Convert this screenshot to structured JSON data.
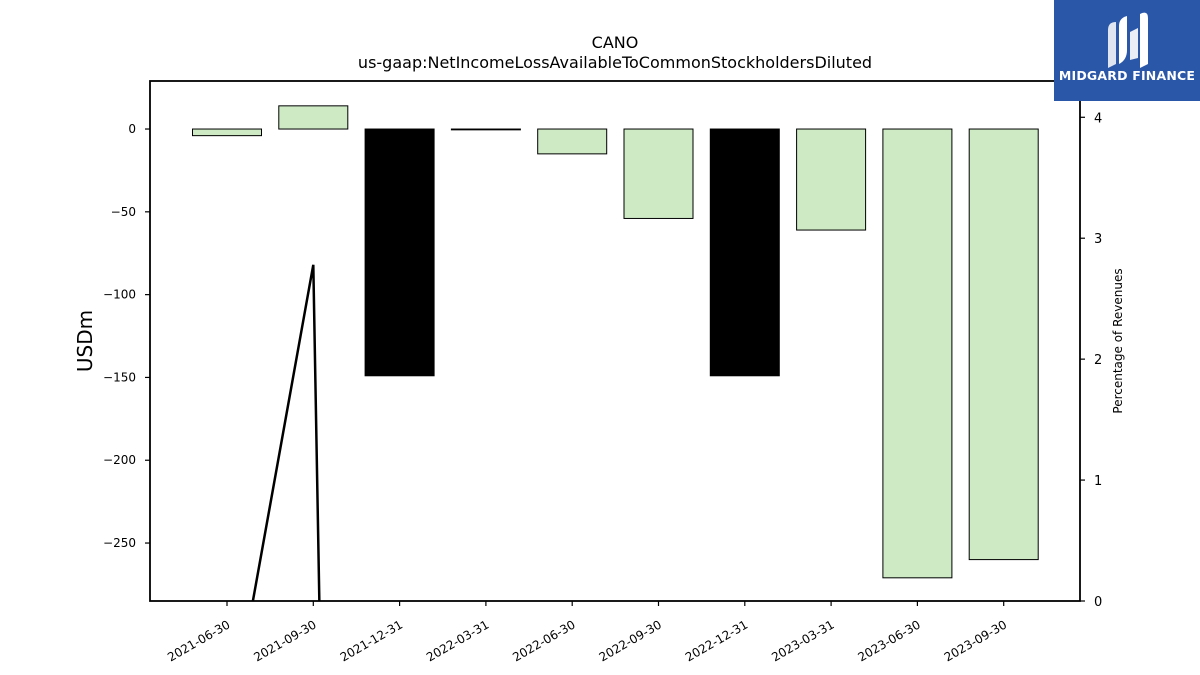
{
  "chart_data": {
    "type": "bar",
    "title": "CANO",
    "subtitle": "us-gaap:NetIncomeLossAvailableToCommonStockholdersDiluted",
    "ylabel": "USDm",
    "y2label": "Percentage of Revenues",
    "categories": [
      "2021-06-30",
      "2021-09-30",
      "2021-12-31",
      "2022-03-31",
      "2022-06-30",
      "2022-09-30",
      "2022-12-31",
      "2023-03-31",
      "2023-06-30",
      "2023-09-30"
    ],
    "values": [
      -4,
      14,
      -149,
      -0.5,
      -15,
      -54,
      -149,
      -61,
      -271,
      -260
    ],
    "bar_colors": [
      "#cdeac5",
      "#cdeac5",
      "#000000",
      "#cdeac5",
      "#cdeac5",
      "#cdeac5",
      "#000000",
      "#cdeac5",
      "#cdeac5",
      "#cdeac5"
    ],
    "ylim": [
      -285,
      29
    ],
    "yticks": [
      0,
      -50,
      -100,
      -150,
      -200,
      -250
    ],
    "y2lim": [
      0,
      4.3
    ],
    "y2ticks": [
      0,
      1,
      2,
      3,
      4
    ],
    "line_series": {
      "name": "",
      "points": [
        [
          0.3,
          0
        ],
        [
          1.0,
          2.78
        ],
        [
          1.07,
          0
        ]
      ]
    },
    "grid": false
  },
  "logo": {
    "text": "MIDGARD FINANCE"
  }
}
